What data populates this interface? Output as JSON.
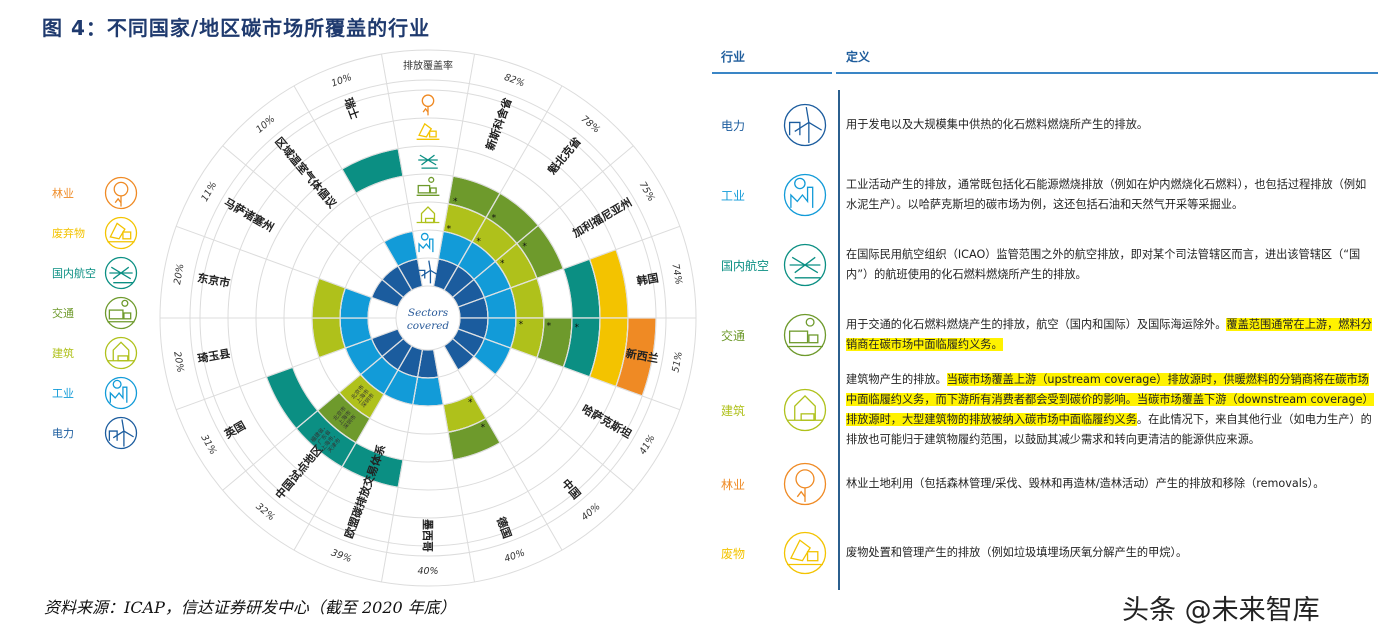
{
  "title": "图 4：不同国家/地区碳市场所覆盖的行业",
  "colors": {
    "power": "#1b5c9e",
    "industry": "#129bd8",
    "buildings": "#afc11b",
    "transport": "#6e9a2c",
    "aviation": "#0b8f83",
    "waste": "#f3c300",
    "forestry": "#ef8a24",
    "grid": "#dcdcdc",
    "highlight": "#fff200"
  },
  "legend": [
    {
      "sector": "forestry",
      "label": "林业",
      "icon": "tree-icon"
    },
    {
      "sector": "waste",
      "label": "废弃物",
      "icon": "dump-truck-icon"
    },
    {
      "sector": "aviation",
      "label": "国内航空",
      "icon": "airplane-icon"
    },
    {
      "sector": "transport",
      "label": "交通",
      "icon": "truck-icon"
    },
    {
      "sector": "buildings",
      "label": "建筑",
      "icon": "house-icon"
    },
    {
      "sector": "industry",
      "label": "工业",
      "icon": "factory-icon"
    },
    {
      "sector": "power",
      "label": "电力",
      "icon": "wind-turbine-icon"
    }
  ],
  "chart_data": {
    "type": "radial-coverage",
    "center_label": [
      "Sectors",
      "covered"
    ],
    "header_label": "排放覆盖率",
    "rings_inner_to_outer": [
      "power",
      "industry",
      "buildings",
      "transport",
      "aviation",
      "waste",
      "forestry"
    ],
    "star_note": "*",
    "jurisdictions": [
      {
        "name": "新斯科舍省",
        "coverage": "82%",
        "sectors": [
          "power",
          "industry",
          "buildings",
          "transport"
        ],
        "starred": [
          "buildings",
          "transport"
        ]
      },
      {
        "name": "魁北克省",
        "coverage": "78%",
        "sectors": [
          "power",
          "industry",
          "buildings",
          "transport"
        ],
        "starred": [
          "buildings",
          "transport"
        ]
      },
      {
        "name": "加利福尼亚州",
        "coverage": "75%",
        "sectors": [
          "power",
          "industry",
          "buildings",
          "transport"
        ],
        "starred": [
          "buildings",
          "transport"
        ]
      },
      {
        "name": "韩国",
        "coverage": "74%",
        "sectors": [
          "power",
          "industry",
          "buildings",
          "aviation",
          "waste"
        ],
        "starred": []
      },
      {
        "name": "新西兰",
        "coverage": "51%",
        "sectors": [
          "power",
          "industry",
          "buildings",
          "transport",
          "aviation",
          "waste",
          "forestry"
        ],
        "starred": [
          "buildings",
          "transport",
          "aviation"
        ]
      },
      {
        "name": "哈萨克斯坦",
        "coverage": "41%",
        "sectors": [
          "power",
          "industry"
        ],
        "starred": []
      },
      {
        "name": "中国",
        "coverage": "40%",
        "sectors": [
          "power"
        ],
        "starred": []
      },
      {
        "name": "德国",
        "coverage": "40%",
        "sectors": [
          "buildings",
          "transport"
        ],
        "starred": [
          "buildings",
          "transport"
        ]
      },
      {
        "name": "墨西哥",
        "coverage": "40%",
        "sectors": [
          "power",
          "industry"
        ],
        "starred": []
      },
      {
        "name": "欧盟碳排放交易体系",
        "coverage": "39%",
        "sectors": [
          "power",
          "industry",
          "aviation"
        ],
        "starred": []
      },
      {
        "name": "中国试点地区",
        "coverage": "32%",
        "sectors": [
          "power",
          "industry",
          "buildings",
          "transport",
          "aviation"
        ],
        "starred": [],
        "segment_notes": {
          "buildings": "北京市 上海市 深圳市",
          "transport": "北京市 上海市 深圳市",
          "aviation": "福建省，广东省 上海市，天津市"
        }
      },
      {
        "name": "英国",
        "coverage": "31%",
        "sectors": [
          "power",
          "industry",
          "aviation"
        ],
        "starred": []
      },
      {
        "name": "琦玉县",
        "coverage": "20%",
        "sectors": [
          "industry",
          "buildings"
        ],
        "starred": []
      },
      {
        "name": "东京市",
        "coverage": "20%",
        "sectors": [
          "industry",
          "buildings"
        ],
        "starred": []
      },
      {
        "name": "马萨诸塞州",
        "coverage": "11%",
        "sectors": [
          "power"
        ],
        "starred": []
      },
      {
        "name": "区域温室气体倡议",
        "coverage": "10%",
        "sectors": [
          "power"
        ],
        "starred": []
      },
      {
        "name": "瑞士",
        "coverage": "10%",
        "sectors": [
          "power",
          "industry",
          "aviation"
        ],
        "starred": []
      }
    ]
  },
  "table": {
    "header_industry": "行业",
    "header_definition": "定义",
    "rows": [
      {
        "sector": "power",
        "label": "电力",
        "icon": "wind-turbine-icon",
        "definition": [
          {
            "text": "用于发电以及大规模集中供热的化石燃料燃烧所产生的排放。",
            "hl": false
          }
        ]
      },
      {
        "sector": "industry",
        "label": "工业",
        "icon": "factory-icon",
        "definition": [
          {
            "text": "工业活动产生的排放，通常既包括化石能源燃烧排放（例如在炉内燃烧化石燃料），也包括过程排放（例如水泥生产）。以哈萨克斯坦的碳市场为例，这还包括石油和天然气开采等采掘业。",
            "hl": false
          }
        ]
      },
      {
        "sector": "aviation",
        "label": "国内航空",
        "icon": "airplane-icon",
        "definition": [
          {
            "text": "在国际民用航空组织（ICAO）监管范围之外的航空排放，即对某个司法管辖区而言，进出该管辖区（“国内”）的航班使用的化石燃料燃烧所产生的排放。",
            "hl": false
          }
        ]
      },
      {
        "sector": "transport",
        "label": "交通",
        "icon": "truck-icon",
        "definition": [
          {
            "text": "用于交通的化石燃料燃烧产生的排放，航空（国内和国际）及国际海运除外。",
            "hl": false
          },
          {
            "text": "覆盖范围通常在上游，燃料分销商在碳市场中面临履约义务。",
            "hl": true
          }
        ]
      },
      {
        "sector": "buildings",
        "label": "建筑",
        "icon": "house-icon",
        "definition": [
          {
            "text": "建筑物产生的排放。",
            "hl": false
          },
          {
            "text": "当碳市场覆盖上游（upstream coverage）排放源时，供暖燃料的分销商将在碳市场中面临履约义务，而下游所有消费者都会受到碳价的影响。当碳市场覆盖下游（downstream coverage）排放源时，大型建筑物的排放被纳入碳市场中面临履约义务",
            "hl": true
          },
          {
            "text": "。在此情况下，来自其他行业（如电力生产）的排放也可能归于建筑物履约范围，以鼓励其减少需求和转向更清洁的能源供应来源。",
            "hl": false
          }
        ]
      },
      {
        "sector": "forestry",
        "label": "林业",
        "icon": "tree-icon",
        "definition": [
          {
            "text": "林业土地利用（包括森林管理/采伐、毁林和再造林/造林活动）产生的排放和移除（removals）。",
            "hl": false
          }
        ]
      },
      {
        "sector": "waste",
        "label": "废物",
        "icon": "dump-truck-icon",
        "definition": [
          {
            "text": "废物处置和管理产生的排放（例如垃圾填埋场厌氧分解产生的甲烷）。",
            "hl": false
          }
        ]
      }
    ]
  },
  "footer": {
    "source": "资料来源：ICAP，信达证券研发中心（截至 2020 年底）",
    "watermark": "头条 @未来智库"
  }
}
